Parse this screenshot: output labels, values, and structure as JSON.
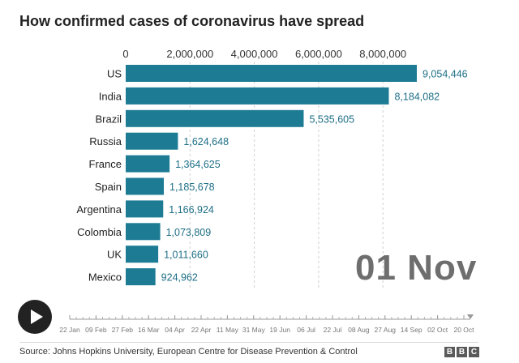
{
  "title": "How confirmed cases of coronavirus have spread",
  "current_date": "01 Nov",
  "source": "Source: Johns Hopkins University, European Centre for Disease Prevention & Control",
  "logo": [
    "B",
    "B",
    "C"
  ],
  "play_icon": "play-icon",
  "timeline": {
    "labels": [
      "22 Jan",
      "09 Feb",
      "27 Feb",
      "16 Mar",
      "04 Apr",
      "22 Apr",
      "11 May",
      "31 May",
      "19 Jun",
      "06 Jul",
      "22 Jul",
      "08 Aug",
      "27 Aug",
      "14 Sep",
      "02 Oct",
      "20 Oct"
    ],
    "progress": 1.0
  },
  "colors": {
    "bar": "#1d7c94",
    "value_label": "#1d6e86",
    "grid": "#cfcfcf",
    "axis_text": "#333333",
    "category_text": "#222222"
  },
  "chart_data": {
    "type": "bar",
    "orientation": "horizontal",
    "title": "How confirmed cases of coronavirus have spread",
    "xlabel": "",
    "ylabel": "",
    "xlim": [
      0,
      9054446
    ],
    "x_ticks": [
      0,
      2000000,
      4000000,
      6000000,
      8000000
    ],
    "x_tick_labels": [
      "0",
      "2,000,000",
      "4,000,000",
      "6,000,000",
      "8,000,000"
    ],
    "categories": [
      "US",
      "India",
      "Brazil",
      "Russia",
      "France",
      "Spain",
      "Argentina",
      "Colombia",
      "UK",
      "Mexico"
    ],
    "values": [
      9054446,
      8184082,
      5535605,
      1624648,
      1364625,
      1185678,
      1166924,
      1073809,
      1011660,
      924962
    ],
    "value_labels": [
      "9,054,446",
      "8,184,082",
      "5,535,605",
      "1,624,648",
      "1,364,625",
      "1,185,678",
      "1,166,924",
      "1,073,809",
      "1,011,660",
      "924,962"
    ],
    "grid": true
  }
}
